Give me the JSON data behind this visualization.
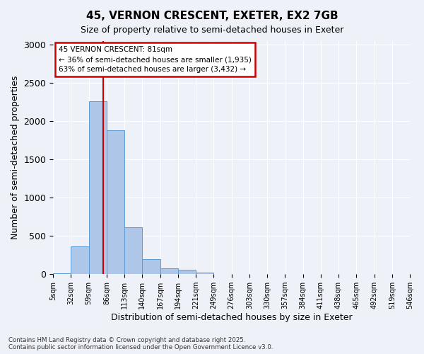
{
  "title": "45, VERNON CRESCENT, EXETER, EX2 7GB",
  "subtitle": "Size of property relative to semi-detached houses in Exeter",
  "xlabel": "Distribution of semi-detached houses by size in Exeter",
  "ylabel": "Number of semi-detached properties",
  "property_size": 81,
  "smaller_pct": 36,
  "smaller_count": 1935,
  "larger_pct": 63,
  "larger_count": 3432,
  "bin_labels": [
    "5sqm",
    "32sqm",
    "59sqm",
    "86sqm",
    "113sqm",
    "140sqm",
    "167sqm",
    "194sqm",
    "221sqm",
    "249sqm",
    "276sqm",
    "303sqm",
    "330sqm",
    "357sqm",
    "384sqm",
    "411sqm",
    "438sqm",
    "465sqm",
    "492sqm",
    "519sqm",
    "546sqm"
  ],
  "bar_values": [
    10,
    360,
    2260,
    1880,
    610,
    200,
    80,
    55,
    25,
    5,
    0,
    0,
    0,
    0,
    0,
    0,
    0,
    0,
    0,
    0
  ],
  "bar_color": "#aec6e8",
  "bar_edge_color": "#5b9bd5",
  "vline_color": "#cc0000",
  "annotation_box_color": "#cc0000",
  "background_color": "#eef2f8",
  "grid_color": "#ffffff",
  "ylim": [
    0,
    3050
  ],
  "yticks": [
    0,
    500,
    1000,
    1500,
    2000,
    2500,
    3000
  ],
  "footer_line1": "Contains HM Land Registry data © Crown copyright and database right 2025.",
  "footer_line2": "Contains public sector information licensed under the Open Government Licence v3.0."
}
